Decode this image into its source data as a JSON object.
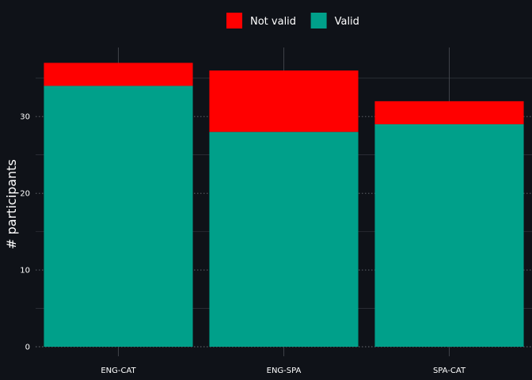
{
  "chart_data": {
    "type": "bar",
    "stacked": true,
    "categories": [
      "ENG-CAT",
      "ENG-SPA",
      "SPA-CAT"
    ],
    "series": [
      {
        "name": "Valid",
        "values": [
          34,
          28,
          29
        ],
        "color": "#00a08a"
      },
      {
        "name": "Not valid",
        "values": [
          3,
          8,
          3
        ],
        "color": "#ff0000"
      }
    ],
    "legend_order": [
      "Not valid",
      "Valid"
    ],
    "legend_position": "top",
    "ylabel": "# participants",
    "xlabel": "",
    "ylim": [
      0,
      39
    ],
    "yticks": [
      0,
      10,
      20,
      30
    ],
    "grid": true,
    "background_color": "#0f1218",
    "grid_color": "#3a3d44"
  }
}
